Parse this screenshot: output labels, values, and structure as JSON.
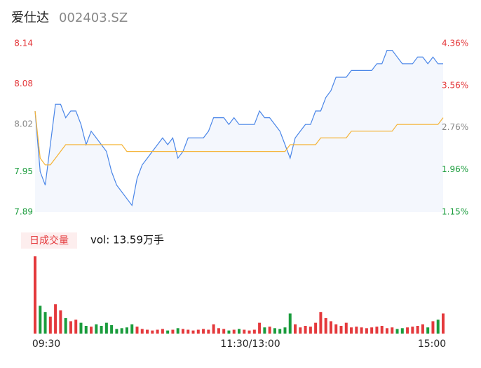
{
  "chart_data": [
    {
      "type": "line",
      "title": "爱仕达",
      "subtitle": "002403.SZ",
      "ylim": [
        7.89,
        8.14
      ],
      "yticks": [
        8.14,
        8.08,
        8.02,
        7.95,
        7.89
      ],
      "y2lim": [
        1.15,
        4.36
      ],
      "y2ticks": [
        {
          "value": 4.36,
          "label": "4.36%"
        },
        {
          "value": 3.56,
          "label": "3.56%"
        },
        {
          "value": 2.76,
          "label": "2.76%"
        },
        {
          "value": 1.96,
          "label": "1.96%"
        },
        {
          "value": 1.15,
          "label": "1.15%"
        }
      ],
      "up_color": "#e4393c",
      "flat_color": "#888888",
      "down_color": "#1a9c3c",
      "series": [
        {
          "color": "#4a86e8",
          "area": "#f4f7fd",
          "values": [
            8.04,
            7.95,
            7.93,
            7.99,
            8.05,
            8.05,
            8.03,
            8.04,
            8.04,
            8.02,
            7.99,
            8.01,
            8.0,
            7.99,
            7.98,
            7.95,
            7.93,
            7.92,
            7.91,
            7.9,
            7.94,
            7.96,
            7.97,
            7.98,
            7.99,
            8.0,
            7.99,
            8.0,
            7.97,
            7.98,
            8.0,
            8.0,
            8.0,
            8.0,
            8.01,
            8.03,
            8.03,
            8.03,
            8.02,
            8.03,
            8.02,
            8.02,
            8.02,
            8.02,
            8.04,
            8.03,
            8.03,
            8.02,
            8.01,
            7.99,
            7.97,
            8.0,
            8.01,
            8.02,
            8.02,
            8.04,
            8.04,
            8.06,
            8.07,
            8.09,
            8.09,
            8.09,
            8.1,
            8.1,
            8.1,
            8.1,
            8.1,
            8.11,
            8.11,
            8.13,
            8.13,
            8.12,
            8.11,
            8.11,
            8.11,
            8.12,
            8.12,
            8.11,
            8.12,
            8.11,
            8.11
          ]
        },
        {
          "color": "#f5b335",
          "values": [
            8.04,
            7.97,
            7.96,
            7.96,
            7.97,
            7.98,
            7.99,
            7.99,
            7.99,
            7.99,
            7.99,
            7.99,
            7.99,
            7.99,
            7.99,
            7.99,
            7.99,
            7.99,
            7.98,
            7.98,
            7.98,
            7.98,
            7.98,
            7.98,
            7.98,
            7.98,
            7.98,
            7.98,
            7.98,
            7.98,
            7.98,
            7.98,
            7.98,
            7.98,
            7.98,
            7.98,
            7.98,
            7.98,
            7.98,
            7.98,
            7.98,
            7.98,
            7.98,
            7.98,
            7.98,
            7.98,
            7.98,
            7.98,
            7.98,
            7.98,
            7.99,
            7.99,
            7.99,
            7.99,
            7.99,
            7.99,
            8.0,
            8.0,
            8.0,
            8.0,
            8.0,
            8.0,
            8.01,
            8.01,
            8.01,
            8.01,
            8.01,
            8.01,
            8.01,
            8.01,
            8.01,
            8.02,
            8.02,
            8.02,
            8.02,
            8.02,
            8.02,
            8.02,
            8.02,
            8.02,
            8.03
          ]
        }
      ]
    },
    {
      "type": "bar",
      "legend": "日成交量",
      "annotation": "vol: 13.59万手",
      "categories": [
        "09:30",
        null,
        null,
        null,
        null,
        null,
        null,
        null,
        null,
        null,
        null,
        null,
        null,
        null,
        null,
        null,
        null,
        null,
        null,
        null,
        null,
        null,
        null,
        null,
        null,
        null,
        null,
        null,
        null,
        null,
        null,
        null,
        null,
        null,
        null,
        null,
        null,
        null,
        null,
        null,
        "11:30/13:00",
        null,
        null,
        null,
        null,
        null,
        null,
        null,
        null,
        null,
        null,
        null,
        null,
        null,
        null,
        null,
        null,
        null,
        null,
        null,
        null,
        null,
        null,
        null,
        null,
        null,
        null,
        null,
        null,
        null,
        null,
        null,
        null,
        null,
        null,
        null,
        null,
        null,
        null,
        null,
        "15:00"
      ],
      "values": [
        5000,
        1800,
        1400,
        1100,
        1900,
        1500,
        1000,
        800,
        900,
        700,
        500,
        450,
        600,
        500,
        700,
        550,
        300,
        350,
        400,
        600,
        450,
        300,
        250,
        200,
        250,
        300,
        200,
        250,
        350,
        300,
        250,
        200,
        250,
        300,
        250,
        600,
        350,
        300,
        200,
        250,
        300,
        250,
        200,
        250,
        700,
        400,
        450,
        350,
        300,
        400,
        1300,
        600,
        400,
        500,
        450,
        700,
        1400,
        1000,
        800,
        600,
        500,
        700,
        400,
        450,
        400,
        350,
        400,
        450,
        500,
        350,
        400,
        300,
        350,
        400,
        450,
        500,
        600,
        400,
        800,
        900,
        1300
      ]
    }
  ]
}
